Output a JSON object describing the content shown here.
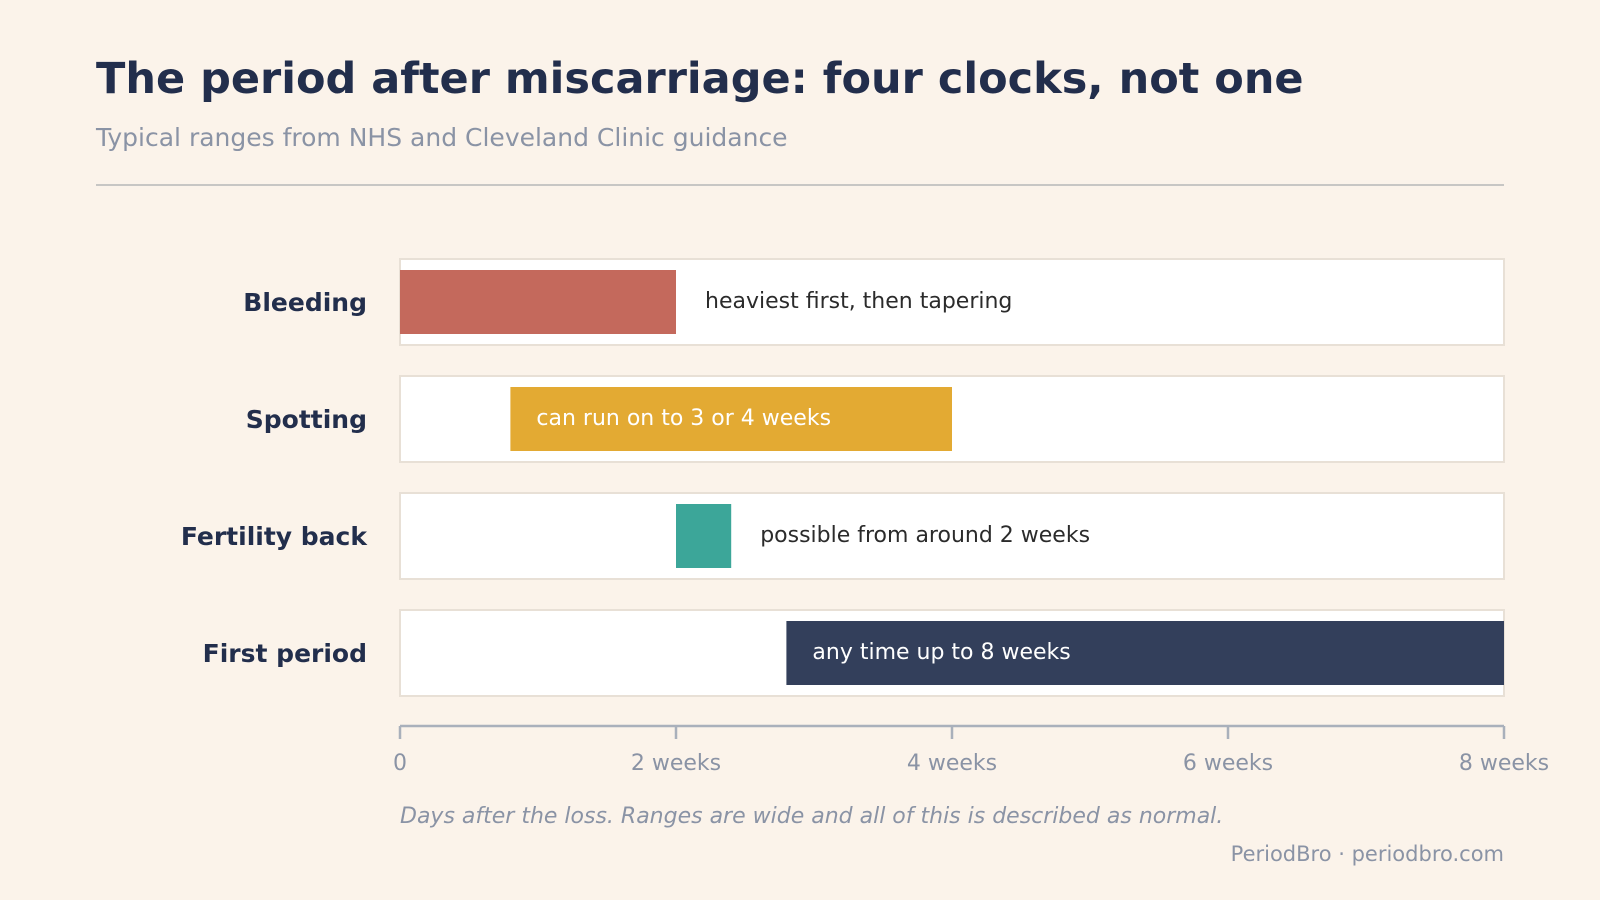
{
  "header": {
    "title": "The period after miscarriage: four clocks, not one",
    "subtitle": "Typical ranges from NHS and Cleveland Clinic guidance"
  },
  "footer": {
    "note": "Days after the loss. Ranges are wide and all of this is described as normal.",
    "credit": "PeriodBro · periodbro.com"
  },
  "chart_data": {
    "type": "bar",
    "orientation": "horizontal-range",
    "title": "The period after miscarriage: four clocks, not one",
    "subtitle": "Typical ranges from NHS and Cleveland Clinic guidance",
    "xlabel": "Days after the loss. Ranges are wide and all of this is described as normal.",
    "xlim": [
      0,
      56
    ],
    "grid": false,
    "x_ticks": [
      {
        "value": 0,
        "label": "0"
      },
      {
        "value": 14,
        "label": "2 weeks"
      },
      {
        "value": 28,
        "label": "4 weeks"
      },
      {
        "value": 42,
        "label": "6 weeks"
      },
      {
        "value": 56,
        "label": "8 weeks"
      }
    ],
    "rows": [
      {
        "label": "Bleeding",
        "start": 0,
        "end": 14,
        "annotation": "heaviest first, then tapering",
        "annotation_placement": "outside",
        "color": "#c4695c"
      },
      {
        "label": "Spotting",
        "start": 5.6,
        "end": 28,
        "annotation": "can run on to 3 or 4 weeks",
        "annotation_placement": "inside",
        "color": "#e3aa33"
      },
      {
        "label": "Fertility back",
        "start": 14,
        "end": 16.8,
        "annotation": "possible from around 2 weeks",
        "annotation_placement": "outside",
        "color": "#3ca699"
      },
      {
        "label": "First period",
        "start": 19.6,
        "end": 56,
        "annotation": "any time up to 8 weeks",
        "annotation_placement": "inside",
        "color": "#333f5b"
      }
    ]
  },
  "colors": {
    "background": "#fbf3ea",
    "title": "#222e4c",
    "muted": "#8a93a5",
    "row_background": "#ffffff",
    "row_border": "#e8e0d6",
    "axis": "#a9b0bb",
    "annotation_dark": "#2b2b2b",
    "annotation_light": "#ffffff"
  }
}
